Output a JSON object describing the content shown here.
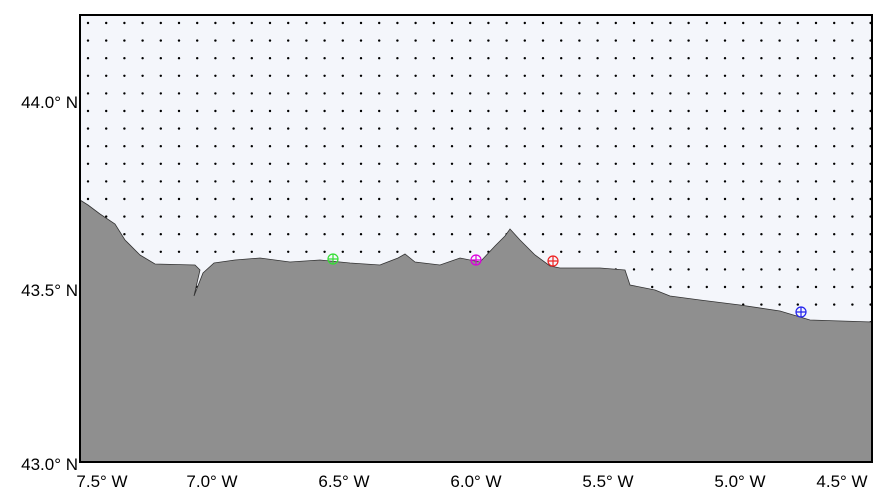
{
  "map": {
    "lon_labels": [
      "7.5° W",
      "7.0° W",
      "6.5° W",
      "6.0° W",
      "5.5° W",
      "5.0° W",
      "4.5° W"
    ],
    "lat_labels": [
      "44.0° N",
      "43.5° N",
      "43.0° N"
    ]
  }
}
